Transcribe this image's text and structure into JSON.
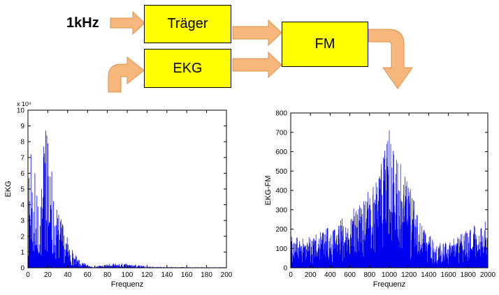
{
  "diagram": {
    "input_label": "1kHz",
    "blocks": [
      {
        "id": "traeger",
        "label": "Träger"
      },
      {
        "id": "ekg",
        "label": "EKG"
      },
      {
        "id": "fm",
        "label": "FM"
      }
    ],
    "block_fill": "#FFFF00",
    "block_border": "#000000",
    "arrow_fill": "#F6B67C",
    "arrow_stroke": "#DD9147"
  },
  "chart_data": [
    {
      "type": "line",
      "variant": "magnitude-spectrum",
      "title": "",
      "xlabel": "Frequenz",
      "ylabel": "EKG",
      "xlim": [
        0,
        200
      ],
      "ylim": [
        0,
        10
      ],
      "y_exponent_label": "x 10⁴",
      "xticks": [
        0,
        20,
        40,
        60,
        80,
        100,
        120,
        140,
        160,
        180,
        200
      ],
      "yticks": [
        0,
        1,
        2,
        3,
        4,
        5,
        6,
        7,
        8,
        9,
        10
      ],
      "line_color": "#0000EE",
      "grid": false,
      "envelope": [
        [
          0,
          5.0
        ],
        [
          2,
          6.8
        ],
        [
          4,
          7.2
        ],
        [
          6,
          4.4
        ],
        [
          8,
          4.9
        ],
        [
          10,
          4.5
        ],
        [
          12,
          5.0
        ],
        [
          14,
          5.6
        ],
        [
          16,
          7.6
        ],
        [
          18,
          8.7
        ],
        [
          20,
          8.2
        ],
        [
          22,
          6.4
        ],
        [
          24,
          5.2
        ],
        [
          26,
          4.6
        ],
        [
          28,
          4.2
        ],
        [
          30,
          3.9
        ],
        [
          33,
          3.3
        ],
        [
          36,
          2.6
        ],
        [
          40,
          1.9
        ],
        [
          44,
          1.3
        ],
        [
          48,
          0.8
        ],
        [
          52,
          0.5
        ],
        [
          56,
          0.32
        ],
        [
          60,
          0.22
        ],
        [
          65,
          0.16
        ],
        [
          70,
          0.15
        ],
        [
          75,
          0.2
        ],
        [
          80,
          0.24
        ],
        [
          85,
          0.27
        ],
        [
          90,
          0.28
        ],
        [
          95,
          0.27
        ],
        [
          100,
          0.26
        ],
        [
          105,
          0.24
        ],
        [
          110,
          0.2
        ],
        [
          115,
          0.14
        ],
        [
          120,
          0.1
        ],
        [
          130,
          0.07
        ],
        [
          140,
          0.06
        ],
        [
          150,
          0.05
        ],
        [
          160,
          0.05
        ],
        [
          170,
          0.04
        ],
        [
          180,
          0.04
        ],
        [
          190,
          0.04
        ],
        [
          200,
          0.04
        ]
      ],
      "peaks": [
        [
          3,
          7.2
        ],
        [
          7,
          6.0
        ],
        [
          16,
          7.7
        ],
        [
          18,
          8.7
        ],
        [
          19,
          8.4
        ],
        [
          20,
          7.9
        ],
        [
          24,
          6.1
        ]
      ]
    },
    {
      "type": "line",
      "variant": "magnitude-spectrum",
      "title": "",
      "xlabel": "Frequenz",
      "ylabel": "EKG-FM",
      "xlim": [
        0,
        2000
      ],
      "ylim": [
        0,
        800
      ],
      "y_exponent_label": "",
      "xticks": [
        0,
        200,
        400,
        600,
        800,
        1000,
        1200,
        1400,
        1600,
        1800,
        2000
      ],
      "yticks": [
        0,
        100,
        200,
        300,
        400,
        500,
        600,
        700,
        800
      ],
      "line_color": "#0000EE",
      "grid": false,
      "envelope": [
        [
          0,
          210
        ],
        [
          50,
          165
        ],
        [
          100,
          150
        ],
        [
          150,
          155
        ],
        [
          200,
          160
        ],
        [
          300,
          185
        ],
        [
          400,
          215
        ],
        [
          500,
          250
        ],
        [
          600,
          290
        ],
        [
          700,
          340
        ],
        [
          800,
          410
        ],
        [
          850,
          455
        ],
        [
          900,
          520
        ],
        [
          950,
          600
        ],
        [
          1000,
          710
        ],
        [
          1030,
          660
        ],
        [
          1060,
          605
        ],
        [
          1100,
          560
        ],
        [
          1150,
          500
        ],
        [
          1200,
          430
        ],
        [
          1250,
          360
        ],
        [
          1300,
          300
        ],
        [
          1350,
          240
        ],
        [
          1400,
          185
        ],
        [
          1450,
          150
        ],
        [
          1500,
          130
        ],
        [
          1550,
          125
        ],
        [
          1600,
          135
        ],
        [
          1650,
          150
        ],
        [
          1700,
          165
        ],
        [
          1750,
          185
        ],
        [
          1800,
          205
        ],
        [
          1850,
          220
        ],
        [
          1900,
          235
        ],
        [
          1950,
          245
        ],
        [
          2000,
          255
        ]
      ],
      "peaks": [
        [
          940,
          570
        ],
        [
          955,
          605
        ],
        [
          985,
          655
        ],
        [
          1000,
          710
        ],
        [
          1015,
          640
        ],
        [
          1045,
          585
        ]
      ]
    }
  ]
}
